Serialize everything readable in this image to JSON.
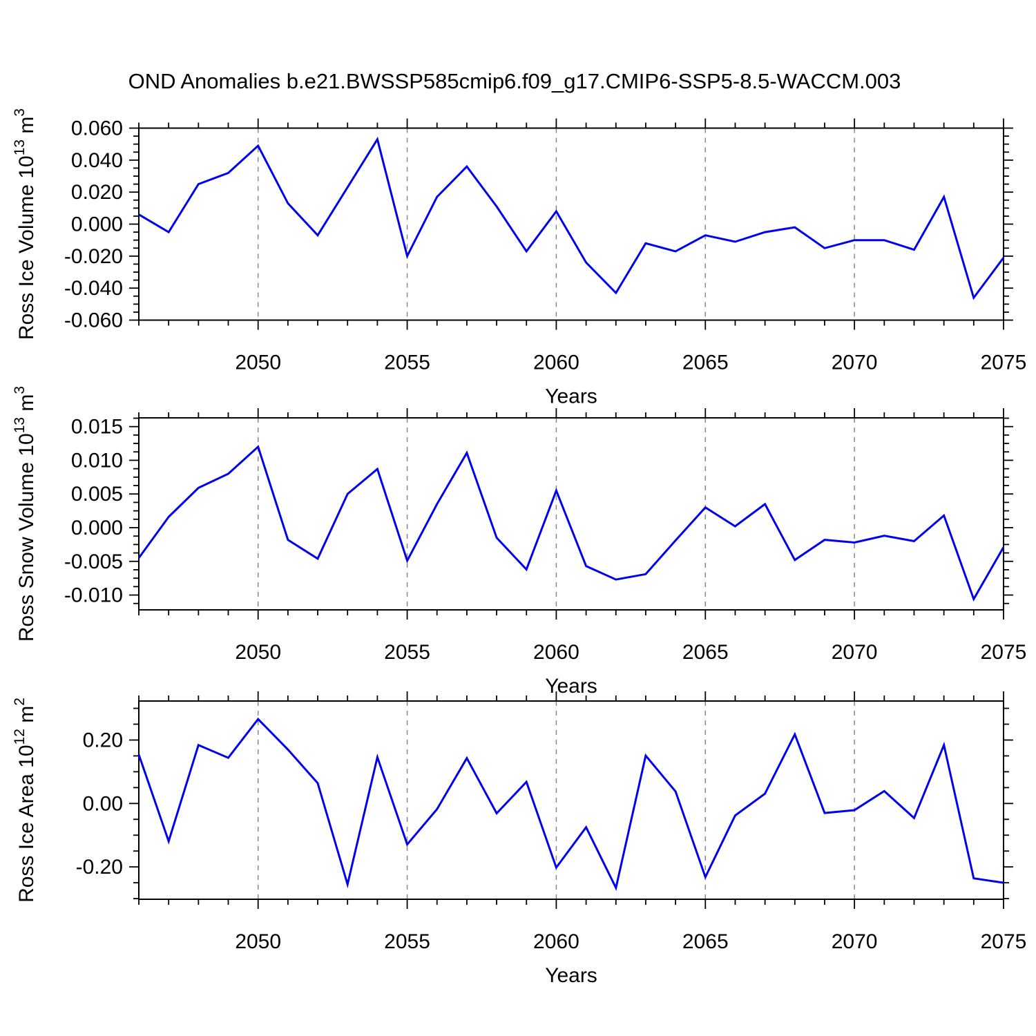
{
  "page": {
    "title": "OND Anomalies b.e21.BWSSP585cmip6.f09_g17.CMIP6-SSP5-8.5-WACCM.003",
    "background": "#ffffff"
  },
  "colors": {
    "line": "#0000ee",
    "axis": "#000000",
    "grid": "#888888",
    "text": "#000000"
  },
  "chart_data": [
    {
      "type": "line",
      "title": "OND Anomalies b.e21.BWSSP585cmip6.f09_g17.CMIP6-SSP5-8.5-WACCM.003",
      "xlabel": "Years",
      "ylabel": "Ross Ice Volume 10^13 m^3",
      "ylabel_parts": [
        {
          "text": "Ross Ice Volume 10"
        },
        {
          "text": "13",
          "sup": true
        },
        {
          "text": " m"
        },
        {
          "text": "3",
          "sup": true
        }
      ],
      "legend": "none",
      "grid": "vertical-dashed",
      "x": [
        2046,
        2047,
        2048,
        2049,
        2050,
        2051,
        2052,
        2053,
        2054,
        2055,
        2056,
        2057,
        2058,
        2059,
        2060,
        2061,
        2062,
        2063,
        2064,
        2065,
        2066,
        2067,
        2068,
        2069,
        2070,
        2071,
        2072,
        2073,
        2074,
        2075
      ],
      "values": [
        0.006,
        -0.005,
        0.025,
        0.032,
        0.049,
        0.013,
        -0.007,
        0.023,
        0.053,
        -0.02,
        0.017,
        0.036,
        0.011,
        -0.017,
        0.008,
        -0.024,
        -0.043,
        -0.012,
        -0.017,
        -0.007,
        -0.011,
        -0.005,
        -0.002,
        -0.015,
        -0.01,
        -0.01,
        -0.016,
        0.017,
        -0.046,
        -0.021
      ],
      "xlim": [
        2046,
        2075
      ],
      "ylim": [
        -0.06,
        0.06
      ],
      "y_major_ticks": [
        -0.06,
        -0.04,
        -0.02,
        0.0,
        0.02,
        0.04,
        0.06
      ],
      "y_minor_step": 0.005,
      "ytick_decimals": 3,
      "xticks_labeled": [
        2050,
        2055,
        2060,
        2065,
        2070,
        2075
      ],
      "x_minor_step": 1,
      "grid_x": [
        2050,
        2055,
        2060,
        2065,
        2070
      ]
    },
    {
      "type": "line",
      "title": "",
      "xlabel": "Years",
      "ylabel": "Ross Snow Volume 10^13 m^3",
      "ylabel_parts": [
        {
          "text": "Ross Snow Volume 10"
        },
        {
          "text": "13",
          "sup": true
        },
        {
          "text": " m"
        },
        {
          "text": "3",
          "sup": true
        }
      ],
      "legend": "none",
      "grid": "vertical-dashed",
      "x": [
        2046,
        2047,
        2048,
        2049,
        2050,
        2051,
        2052,
        2053,
        2054,
        2055,
        2056,
        2057,
        2058,
        2059,
        2060,
        2061,
        2062,
        2063,
        2064,
        2065,
        2066,
        2067,
        2068,
        2069,
        2070,
        2071,
        2072,
        2073,
        2074,
        2075
      ],
      "values": [
        -0.0045,
        0.0016,
        0.0059,
        0.008,
        0.012,
        -0.0018,
        -0.0046,
        0.005,
        0.0087,
        -0.0049,
        0.0035,
        0.0111,
        -0.0015,
        -0.0062,
        0.0055,
        -0.0057,
        -0.0077,
        -0.0069,
        -0.0019,
        0.003,
        0.0002,
        0.0035,
        -0.0048,
        -0.0018,
        -0.0022,
        -0.0012,
        -0.002,
        0.0018,
        -0.0106,
        -0.0029
      ],
      "xlim": [
        2046,
        2075
      ],
      "ylim": [
        -0.0122,
        0.0163
      ],
      "y_major_ticks": [
        -0.01,
        -0.005,
        0.0,
        0.005,
        0.01,
        0.015
      ],
      "y_minor_step": 0.00125,
      "ytick_decimals": 3,
      "xticks_labeled": [
        2050,
        2055,
        2060,
        2065,
        2070,
        2075
      ],
      "x_minor_step": 1,
      "grid_x": [
        2050,
        2055,
        2060,
        2065,
        2070
      ]
    },
    {
      "type": "line",
      "title": "",
      "xlabel": "Years",
      "ylabel": "Ross Ice Area 10^12 m^2",
      "ylabel_parts": [
        {
          "text": "Ross Ice Area 10"
        },
        {
          "text": "12",
          "sup": true
        },
        {
          "text": " m"
        },
        {
          "text": "2",
          "sup": true
        }
      ],
      "legend": "none",
      "grid": "vertical-dashed",
      "x": [
        2046,
        2047,
        2048,
        2049,
        2050,
        2051,
        2052,
        2053,
        2054,
        2055,
        2056,
        2057,
        2058,
        2059,
        2060,
        2061,
        2062,
        2063,
        2064,
        2065,
        2066,
        2067,
        2068,
        2069,
        2070,
        2071,
        2072,
        2073,
        2074,
        2075
      ],
      "values": [
        0.154,
        -0.119,
        0.184,
        0.144,
        0.266,
        0.17,
        0.064,
        -0.255,
        0.146,
        -0.129,
        -0.018,
        0.143,
        -0.031,
        0.068,
        -0.202,
        -0.075,
        -0.266,
        0.151,
        0.038,
        -0.232,
        -0.038,
        0.031,
        0.218,
        -0.03,
        -0.021,
        0.039,
        -0.046,
        0.184,
        -0.236,
        -0.25
      ],
      "xlim": [
        2046,
        2075
      ],
      "ylim": [
        -0.302,
        0.323
      ],
      "y_major_ticks": [
        -0.2,
        0.0,
        0.2
      ],
      "y_minor_step": 0.05,
      "ytick_decimals": 2,
      "xticks_labeled": [
        2050,
        2055,
        2060,
        2065,
        2070,
        2075
      ],
      "x_minor_step": 1,
      "grid_x": [
        2050,
        2055,
        2060,
        2065,
        2070
      ]
    }
  ]
}
